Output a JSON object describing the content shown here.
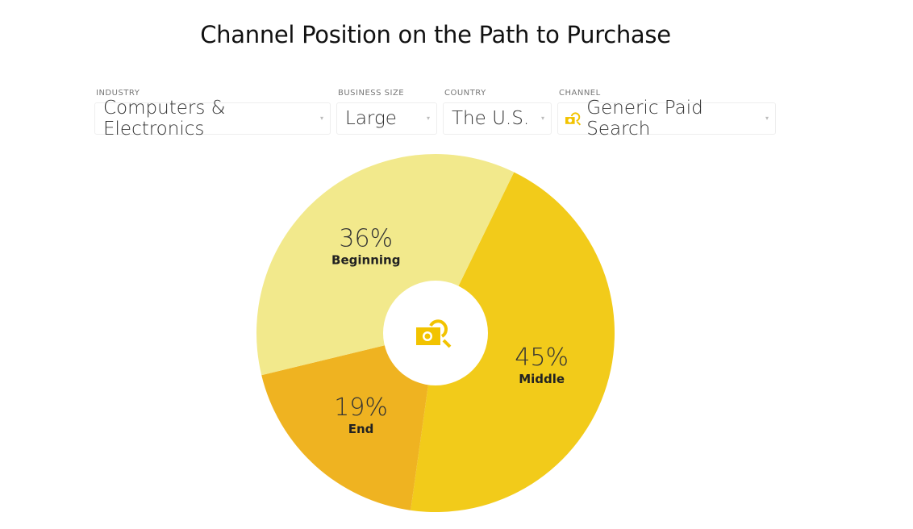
{
  "chart_data": {
    "type": "pie",
    "title": "Channel Position on the Path to Purchase",
    "categories": [
      "Middle",
      "End",
      "Beginning"
    ],
    "values": [
      45,
      19,
      36
    ],
    "labels": [
      "45%",
      "19%",
      "36%"
    ],
    "colors": [
      "#f2cb1a",
      "#efb321",
      "#f2e98c"
    ],
    "center_icon": "paid-search-icon"
  },
  "filters": [
    {
      "label": "INDUSTRY",
      "value": "Computers & Electronics"
    },
    {
      "label": "BUSINESS SIZE",
      "value": "Large"
    },
    {
      "label": "COUNTRY",
      "value": "The U.S."
    },
    {
      "label": "CHANNEL",
      "value": "Generic Paid Search",
      "icon": "paid-search-icon"
    }
  ]
}
